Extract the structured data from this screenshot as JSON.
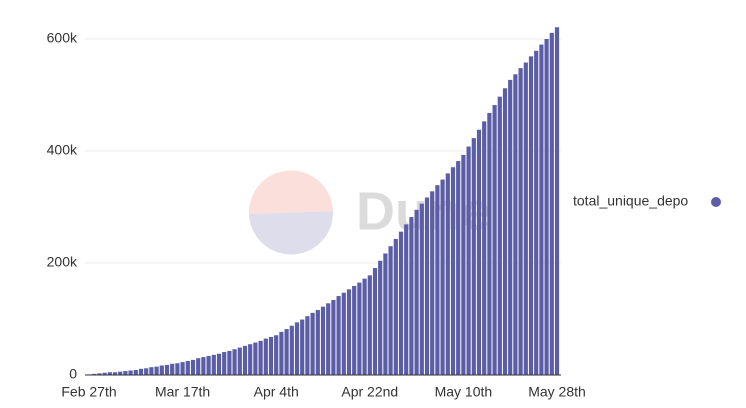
{
  "chart_data": {
    "type": "bar",
    "categories": [
      "Feb 27th",
      null,
      null,
      null,
      null,
      null,
      null,
      null,
      null,
      null,
      null,
      null,
      null,
      null,
      null,
      null,
      null,
      null,
      "Mar 17th",
      null,
      null,
      null,
      null,
      null,
      null,
      null,
      null,
      null,
      null,
      null,
      null,
      null,
      null,
      null,
      null,
      null,
      "Apr 4th",
      null,
      null,
      null,
      null,
      null,
      null,
      null,
      null,
      null,
      null,
      null,
      null,
      null,
      null,
      null,
      null,
      null,
      "Apr 22nd",
      null,
      null,
      null,
      null,
      null,
      null,
      null,
      null,
      null,
      null,
      null,
      null,
      null,
      null,
      null,
      null,
      null,
      "May 10th",
      null,
      null,
      null,
      null,
      null,
      null,
      null,
      null,
      null,
      null,
      null,
      null,
      null,
      null,
      null,
      null,
      null,
      "May 28th"
    ],
    "series": [
      {
        "name": "total_unique_depo",
        "color": "#5b5ea6",
        "values": [
          1000,
          2000,
          3000,
          4000,
          5000,
          5000,
          6000,
          7000,
          8000,
          9000,
          11000,
          12000,
          14000,
          15000,
          17000,
          18000,
          20000,
          21000,
          23000,
          25000,
          27000,
          30000,
          32000,
          34000,
          36000,
          38000,
          41000,
          43000,
          46000,
          49000,
          52000,
          55000,
          58000,
          61000,
          65000,
          68000,
          71000,
          77000,
          82000,
          88000,
          94000,
          99000,
          105000,
          111000,
          116000,
          122000,
          128000,
          134000,
          141000,
          147000,
          153000,
          159000,
          165000,
          172000,
          178000,
          191000,
          204000,
          217000,
          230000,
          243000,
          256000,
          269000,
          282000,
          295000,
          306000,
          317000,
          328000,
          339000,
          349000,
          360000,
          371000,
          382000,
          393000,
          408000,
          423000,
          438000,
          453000,
          468000,
          482000,
          497000,
          512000,
          527000,
          537000,
          548000,
          558000,
          569000,
          579000,
          590000,
          600000,
          611000,
          621000
        ]
      }
    ],
    "ylim": [
      0,
      630000
    ],
    "yticks": [
      {
        "value": 0,
        "label": "0"
      },
      {
        "value": 200000,
        "label": "200k"
      },
      {
        "value": 400000,
        "label": "400k"
      },
      {
        "value": 600000,
        "label": "600k"
      }
    ],
    "grid": true,
    "legend": "right",
    "watermark": "Dune"
  }
}
